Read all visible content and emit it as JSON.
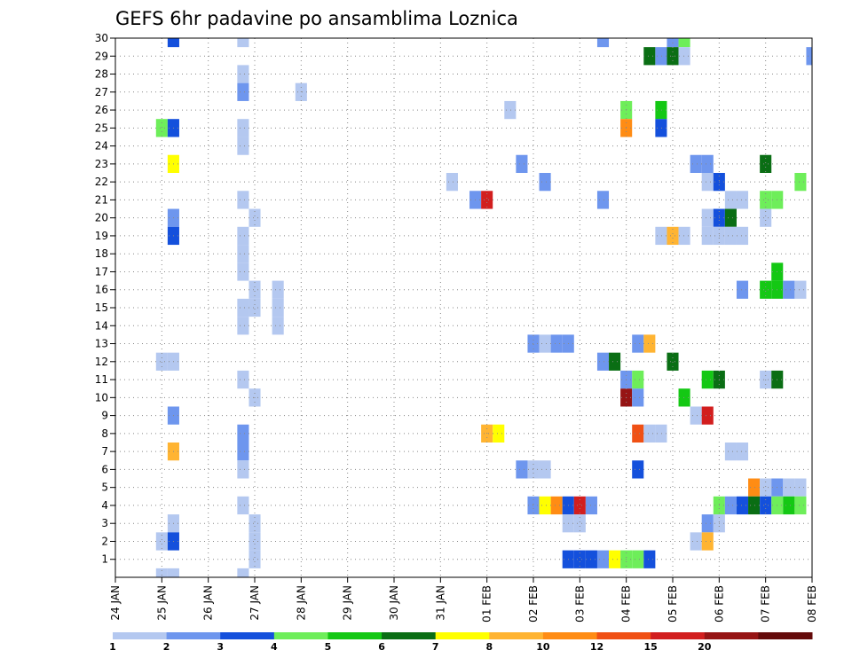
{
  "chart_data": {
    "type": "heatmap",
    "title": "GEFS 6hr padavine po ansamblima Loznica",
    "xlabel": "",
    "ylabel": "",
    "x_unit": "6h steps starting 24 JAN 00Z",
    "x_ticks": [
      {
        "step": 0,
        "label": "24 JAN"
      },
      {
        "step": 4,
        "label": "25 JAN"
      },
      {
        "step": 8,
        "label": "26 JAN"
      },
      {
        "step": 12,
        "label": "27 JAN"
      },
      {
        "step": 16,
        "label": "28 JAN"
      },
      {
        "step": 20,
        "label": "29 JAN"
      },
      {
        "step": 24,
        "label": "30 JAN"
      },
      {
        "step": 28,
        "label": "31 JAN"
      },
      {
        "step": 32,
        "label": "01 FEB"
      },
      {
        "step": 36,
        "label": "02 FEB"
      },
      {
        "step": 40,
        "label": "03 FEB"
      },
      {
        "step": 44,
        "label": "04 FEB"
      },
      {
        "step": 48,
        "label": "05 FEB"
      },
      {
        "step": 52,
        "label": "06 FEB"
      },
      {
        "step": 56,
        "label": "07 FEB"
      },
      {
        "step": 60,
        "label": "08 FEB"
      }
    ],
    "xlim": [
      0,
      60
    ],
    "ylim": [
      0,
      30
    ],
    "y_ticks": [
      1,
      2,
      3,
      4,
      5,
      6,
      7,
      8,
      9,
      10,
      11,
      12,
      13,
      14,
      15,
      16,
      17,
      18,
      19,
      20,
      21,
      22,
      23,
      24,
      25,
      26,
      27,
      28,
      29,
      30
    ],
    "grid": true,
    "legend": {
      "placement": "bottom",
      "labels": [
        "1",
        "2",
        "3",
        "4",
        "5",
        "6",
        "7",
        "8",
        "10",
        "12",
        "15",
        "20"
      ],
      "colors": [
        "#b4c8f0",
        "#6e96ee",
        "#1450dc",
        "#6eee5a",
        "#14c814",
        "#0a6e14",
        "#ffff00",
        "#ffb432",
        "#ff8c14",
        "#f05014",
        "#d21e1e",
        "#961414",
        "#640a0a"
      ]
    },
    "cells": [
      {
        "m": 30,
        "s": 5,
        "c": 2
      },
      {
        "m": 30,
        "s": 11,
        "c": 0
      },
      {
        "m": 30,
        "s": 42,
        "c": 1
      },
      {
        "m": 30,
        "s": 48,
        "c": 1
      },
      {
        "m": 30,
        "s": 49,
        "c": 3
      },
      {
        "m": 29,
        "s": 46,
        "c": 5
      },
      {
        "m": 29,
        "s": 47,
        "c": 1
      },
      {
        "m": 29,
        "s": 48,
        "c": 5
      },
      {
        "m": 29,
        "s": 49,
        "c": 0
      },
      {
        "m": 29,
        "s": 60,
        "c": 1
      },
      {
        "m": 28,
        "s": 11,
        "c": 0
      },
      {
        "m": 27,
        "s": 11,
        "c": 1
      },
      {
        "m": 27,
        "s": 16,
        "c": 0
      },
      {
        "m": 26,
        "s": 34,
        "c": 0
      },
      {
        "m": 26,
        "s": 44,
        "c": 3
      },
      {
        "m": 26,
        "s": 47,
        "c": 4
      },
      {
        "m": 25,
        "s": 4,
        "c": 3
      },
      {
        "m": 25,
        "s": 5,
        "c": 2
      },
      {
        "m": 25,
        "s": 11,
        "c": 0
      },
      {
        "m": 25,
        "s": 44,
        "c": 8
      },
      {
        "m": 25,
        "s": 47,
        "c": 2
      },
      {
        "m": 24,
        "s": 11,
        "c": 0
      },
      {
        "m": 23,
        "s": 5,
        "c": 6
      },
      {
        "m": 23,
        "s": 35,
        "c": 1
      },
      {
        "m": 23,
        "s": 50,
        "c": 1
      },
      {
        "m": 23,
        "s": 51,
        "c": 1
      },
      {
        "m": 23,
        "s": 56,
        "c": 5
      },
      {
        "m": 22,
        "s": 29,
        "c": 0
      },
      {
        "m": 22,
        "s": 37,
        "c": 1
      },
      {
        "m": 22,
        "s": 51,
        "c": 0
      },
      {
        "m": 22,
        "s": 52,
        "c": 2
      },
      {
        "m": 22,
        "s": 59,
        "c": 3
      },
      {
        "m": 21,
        "s": 11,
        "c": 0
      },
      {
        "m": 21,
        "s": 31,
        "c": 1
      },
      {
        "m": 21,
        "s": 32,
        "c": 10
      },
      {
        "m": 21,
        "s": 42,
        "c": 1
      },
      {
        "m": 21,
        "s": 53,
        "c": 0
      },
      {
        "m": 21,
        "s": 54,
        "c": 0
      },
      {
        "m": 21,
        "s": 56,
        "c": 3
      },
      {
        "m": 21,
        "s": 57,
        "c": 3
      },
      {
        "m": 20,
        "s": 5,
        "c": 1
      },
      {
        "m": 20,
        "s": 12,
        "c": 0
      },
      {
        "m": 20,
        "s": 51,
        "c": 0
      },
      {
        "m": 20,
        "s": 52,
        "c": 2
      },
      {
        "m": 20,
        "s": 53,
        "c": 5
      },
      {
        "m": 20,
        "s": 56,
        "c": 0
      },
      {
        "m": 19,
        "s": 5,
        "c": 2
      },
      {
        "m": 19,
        "s": 11,
        "c": 0
      },
      {
        "m": 19,
        "s": 47,
        "c": 0
      },
      {
        "m": 19,
        "s": 48,
        "c": 7
      },
      {
        "m": 19,
        "s": 49,
        "c": 0
      },
      {
        "m": 19,
        "s": 51,
        "c": 0
      },
      {
        "m": 19,
        "s": 52,
        "c": 0
      },
      {
        "m": 19,
        "s": 53,
        "c": 0
      },
      {
        "m": 19,
        "s": 54,
        "c": 0
      },
      {
        "m": 18,
        "s": 11,
        "c": 0
      },
      {
        "m": 17,
        "s": 11,
        "c": 0
      },
      {
        "m": 17,
        "s": 57,
        "c": 4
      },
      {
        "m": 16,
        "s": 12,
        "c": 0
      },
      {
        "m": 16,
        "s": 14,
        "c": 0
      },
      {
        "m": 16,
        "s": 54,
        "c": 1
      },
      {
        "m": 16,
        "s": 56,
        "c": 4
      },
      {
        "m": 16,
        "s": 57,
        "c": 4
      },
      {
        "m": 16,
        "s": 58,
        "c": 1
      },
      {
        "m": 16,
        "s": 59,
        "c": 0
      },
      {
        "m": 15,
        "s": 11,
        "c": 0
      },
      {
        "m": 15,
        "s": 12,
        "c": 0
      },
      {
        "m": 15,
        "s": 14,
        "c": 0
      },
      {
        "m": 14,
        "s": 11,
        "c": 0
      },
      {
        "m": 14,
        "s": 14,
        "c": 0
      },
      {
        "m": 13,
        "s": 36,
        "c": 1
      },
      {
        "m": 13,
        "s": 37,
        "c": 0
      },
      {
        "m": 13,
        "s": 38,
        "c": 1
      },
      {
        "m": 13,
        "s": 39,
        "c": 1
      },
      {
        "m": 13,
        "s": 45,
        "c": 1
      },
      {
        "m": 13,
        "s": 46,
        "c": 7
      },
      {
        "m": 12,
        "s": 4,
        "c": 0
      },
      {
        "m": 12,
        "s": 5,
        "c": 0
      },
      {
        "m": 12,
        "s": 42,
        "c": 1
      },
      {
        "m": 12,
        "s": 43,
        "c": 5
      },
      {
        "m": 12,
        "s": 48,
        "c": 5
      },
      {
        "m": 11,
        "s": 11,
        "c": 0
      },
      {
        "m": 11,
        "s": 44,
        "c": 1
      },
      {
        "m": 11,
        "s": 45,
        "c": 3
      },
      {
        "m": 11,
        "s": 51,
        "c": 4
      },
      {
        "m": 11,
        "s": 52,
        "c": 5
      },
      {
        "m": 11,
        "s": 56,
        "c": 0
      },
      {
        "m": 11,
        "s": 57,
        "c": 5
      },
      {
        "m": 10,
        "s": 12,
        "c": 0
      },
      {
        "m": 10,
        "s": 44,
        "c": 11
      },
      {
        "m": 10,
        "s": 45,
        "c": 1
      },
      {
        "m": 10,
        "s": 49,
        "c": 4
      },
      {
        "m": 9,
        "s": 5,
        "c": 1
      },
      {
        "m": 9,
        "s": 50,
        "c": 0
      },
      {
        "m": 9,
        "s": 51,
        "c": 10
      },
      {
        "m": 8,
        "s": 11,
        "c": 1
      },
      {
        "m": 8,
        "s": 32,
        "c": 7
      },
      {
        "m": 8,
        "s": 33,
        "c": 6
      },
      {
        "m": 8,
        "s": 45,
        "c": 9
      },
      {
        "m": 8,
        "s": 46,
        "c": 0
      },
      {
        "m": 8,
        "s": 47,
        "c": 0
      },
      {
        "m": 7,
        "s": 5,
        "c": 7
      },
      {
        "m": 7,
        "s": 11,
        "c": 1
      },
      {
        "m": 7,
        "s": 53,
        "c": 0
      },
      {
        "m": 7,
        "s": 54,
        "c": 0
      },
      {
        "m": 6,
        "s": 11,
        "c": 0
      },
      {
        "m": 6,
        "s": 35,
        "c": 1
      },
      {
        "m": 6,
        "s": 36,
        "c": 0
      },
      {
        "m": 6,
        "s": 37,
        "c": 0
      },
      {
        "m": 6,
        "s": 45,
        "c": 2
      },
      {
        "m": 5,
        "s": 55,
        "c": 8
      },
      {
        "m": 5,
        "s": 56,
        "c": 0
      },
      {
        "m": 5,
        "s": 57,
        "c": 1
      },
      {
        "m": 5,
        "s": 58,
        "c": 0
      },
      {
        "m": 5,
        "s": 59,
        "c": 0
      },
      {
        "m": 4,
        "s": 11,
        "c": 0
      },
      {
        "m": 4,
        "s": 36,
        "c": 1
      },
      {
        "m": 4,
        "s": 37,
        "c": 6
      },
      {
        "m": 4,
        "s": 38,
        "c": 8
      },
      {
        "m": 4,
        "s": 39,
        "c": 2
      },
      {
        "m": 4,
        "s": 40,
        "c": 10
      },
      {
        "m": 4,
        "s": 41,
        "c": 1
      },
      {
        "m": 4,
        "s": 52,
        "c": 3
      },
      {
        "m": 4,
        "s": 53,
        "c": 1
      },
      {
        "m": 4,
        "s": 54,
        "c": 2
      },
      {
        "m": 4,
        "s": 55,
        "c": 5
      },
      {
        "m": 4,
        "s": 56,
        "c": 2
      },
      {
        "m": 4,
        "s": 57,
        "c": 3
      },
      {
        "m": 4,
        "s": 58,
        "c": 4
      },
      {
        "m": 4,
        "s": 59,
        "c": 3
      },
      {
        "m": 3,
        "s": 5,
        "c": 0
      },
      {
        "m": 3,
        "s": 12,
        "c": 0
      },
      {
        "m": 3,
        "s": 39,
        "c": 0
      },
      {
        "m": 3,
        "s": 40,
        "c": 0
      },
      {
        "m": 3,
        "s": 51,
        "c": 1
      },
      {
        "m": 3,
        "s": 52,
        "c": 0
      },
      {
        "m": 2,
        "s": 4,
        "c": 0
      },
      {
        "m": 2,
        "s": 5,
        "c": 2
      },
      {
        "m": 2,
        "s": 12,
        "c": 0
      },
      {
        "m": 2,
        "s": 50,
        "c": 0
      },
      {
        "m": 2,
        "s": 51,
        "c": 7
      },
      {
        "m": 1,
        "s": 12,
        "c": 0
      },
      {
        "m": 1,
        "s": 39,
        "c": 2
      },
      {
        "m": 1,
        "s": 40,
        "c": 2
      },
      {
        "m": 1,
        "s": 41,
        "c": 2
      },
      {
        "m": 1,
        "s": 42,
        "c": 1
      },
      {
        "m": 1,
        "s": 43,
        "c": 6
      },
      {
        "m": 1,
        "s": 44,
        "c": 3
      },
      {
        "m": 1,
        "s": 45,
        "c": 3
      },
      {
        "m": 1,
        "s": 46,
        "c": 2
      },
      {
        "m": 0,
        "s": 4,
        "c": 0
      },
      {
        "m": 0,
        "s": 5,
        "c": 0
      },
      {
        "m": 0,
        "s": 11,
        "c": 0
      }
    ]
  }
}
